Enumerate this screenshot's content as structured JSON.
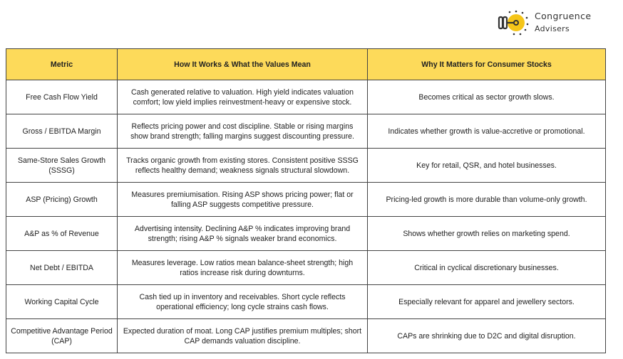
{
  "brand": {
    "line1": "Congruence",
    "line2": "Advisers",
    "accent": "#f5c518"
  },
  "table": {
    "headers": [
      "Metric",
      "How It Works & What the Values Mean",
      "Why It Matters for Consumer Stocks"
    ],
    "rows": [
      [
        "Free Cash Flow Yield",
        "Cash generated relative to valuation. High yield indicates valuation comfort; low yield implies reinvestment-heavy or expensive stock.",
        "Becomes critical as sector growth slows."
      ],
      [
        "Gross / EBITDA Margin",
        "Reflects pricing power and cost discipline. Stable or rising margins show brand strength; falling margins suggest discounting pressure.",
        "Indicates whether growth is value-accretive or promotional."
      ],
      [
        "Same-Store Sales Growth (SSSG)",
        "Tracks organic growth from existing stores. Consistent positive SSSG reflects healthy demand; weakness signals structural slowdown.",
        "Key for retail, QSR, and hotel businesses."
      ],
      [
        "ASP (Pricing) Growth",
        "Measures premiumisation. Rising ASP shows pricing power; flat or falling ASP suggests competitive pressure.",
        "Pricing-led growth is more durable than volume-only growth."
      ],
      [
        "A&P as % of Revenue",
        "Advertising intensity. Declining A&P % indicates improving brand strength; rising A&P % signals weaker brand economics.",
        "Shows whether growth relies on marketing spend."
      ],
      [
        "Net Debt / EBITDA",
        "Measures leverage. Low ratios mean balance-sheet strength; high ratios increase risk during downturns.",
        "Critical in cyclical discretionary businesses."
      ],
      [
        "Working Capital Cycle",
        "Cash tied up in inventory and receivables. Short cycle reflects operational efficiency; long cycle strains cash flows.",
        "Especially relevant for apparel and jewellery sectors."
      ],
      [
        "Competitive Advantage Period (CAP)",
        "Expected duration of moat. Long CAP justifies premium multiples; short CAP demands valuation discipline.",
        "CAPs are shrinking due to D2C and digital disruption."
      ]
    ]
  }
}
